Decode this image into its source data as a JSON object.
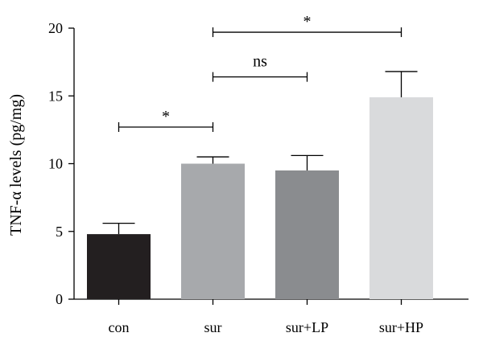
{
  "chart_data": {
    "type": "bar",
    "categories": [
      "con",
      "sur",
      "sur+LP",
      "sur+HP"
    ],
    "values": [
      4.8,
      10.0,
      9.5,
      14.9
    ],
    "errors": [
      0.8,
      0.5,
      1.1,
      1.9
    ],
    "colors": [
      "#231f20",
      "#a7a9ac",
      "#8a8c8f",
      "#d9dadc"
    ],
    "ylabel": "TNF-α levels (pg/mg)",
    "xlabel": "",
    "ylim": [
      0,
      20
    ],
    "yticks": [
      "0",
      "5",
      "10",
      "15",
      "20"
    ],
    "significance": [
      {
        "from": "con",
        "to": "sur",
        "label": "*",
        "level": 12.7
      },
      {
        "from": "sur",
        "to": "sur+LP",
        "label": "ns",
        "level": 16.4
      },
      {
        "from": "sur",
        "to": "sur+HP",
        "label": "*",
        "level": 19.7
      }
    ]
  }
}
